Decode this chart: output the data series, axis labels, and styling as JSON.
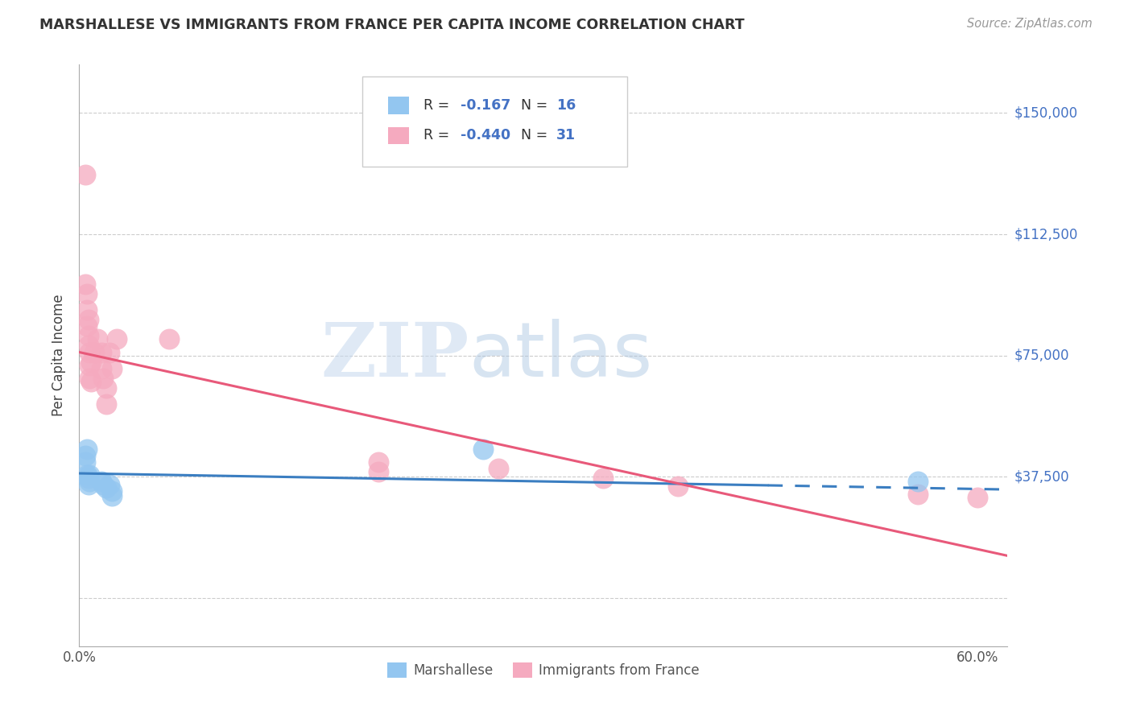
{
  "title": "MARSHALLESE VS IMMIGRANTS FROM FRANCE PER CAPITA INCOME CORRELATION CHART",
  "source": "Source: ZipAtlas.com",
  "ylabel": "Per Capita Income",
  "xlim": [
    0.0,
    0.62
  ],
  "ylim": [
    -15000,
    165000
  ],
  "yticks": [
    0,
    37500,
    75000,
    112500,
    150000
  ],
  "ytick_labels": [
    "",
    "$37,500",
    "$75,000",
    "$112,500",
    "$150,000"
  ],
  "xtick_vals": [
    0.0,
    0.6
  ],
  "xtick_labels": [
    "0.0%",
    "60.0%"
  ],
  "blue_color": "#93C6F0",
  "pink_color": "#F5AABF",
  "blue_line_color": "#3B7EC1",
  "pink_line_color": "#E8597A",
  "right_label_color": "#4472C4",
  "blue_scatter": [
    [
      0.004,
      44000
    ],
    [
      0.005,
      46000
    ],
    [
      0.004,
      42000
    ],
    [
      0.005,
      38000
    ],
    [
      0.006,
      37000
    ],
    [
      0.007,
      38000
    ],
    [
      0.006,
      35000
    ],
    [
      0.007,
      36000
    ],
    [
      0.015,
      36000
    ],
    [
      0.016,
      35000
    ],
    [
      0.018,
      34000
    ],
    [
      0.02,
      35000
    ],
    [
      0.022,
      33000
    ],
    [
      0.022,
      31500
    ],
    [
      0.27,
      46000
    ],
    [
      0.56,
      36000
    ]
  ],
  "pink_scatter": [
    [
      0.004,
      131000
    ],
    [
      0.004,
      97000
    ],
    [
      0.005,
      94000
    ],
    [
      0.005,
      89000
    ],
    [
      0.005,
      84000
    ],
    [
      0.006,
      86000
    ],
    [
      0.006,
      81000
    ],
    [
      0.006,
      78000
    ],
    [
      0.007,
      76000
    ],
    [
      0.007,
      72000
    ],
    [
      0.007,
      68000
    ],
    [
      0.008,
      73000
    ],
    [
      0.008,
      67000
    ],
    [
      0.01,
      76000
    ],
    [
      0.012,
      80000
    ],
    [
      0.015,
      76000
    ],
    [
      0.015,
      71000
    ],
    [
      0.016,
      68000
    ],
    [
      0.018,
      65000
    ],
    [
      0.018,
      60000
    ],
    [
      0.02,
      76000
    ],
    [
      0.022,
      71000
    ],
    [
      0.025,
      80000
    ],
    [
      0.06,
      80000
    ],
    [
      0.2,
      42000
    ],
    [
      0.2,
      39000
    ],
    [
      0.28,
      40000
    ],
    [
      0.35,
      37000
    ],
    [
      0.4,
      34500
    ],
    [
      0.56,
      32000
    ],
    [
      0.6,
      31000
    ]
  ],
  "blue_line_x": [
    0.0,
    0.62
  ],
  "blue_line_y": [
    38500,
    33500
  ],
  "pink_line_x": [
    0.0,
    0.62
  ],
  "pink_line_y": [
    76000,
    13000
  ],
  "watermark_zip": "ZIP",
  "watermark_atlas": "atlas",
  "background_color": "#FFFFFF",
  "grid_color": "#CCCCCC",
  "legend_r1": "-0.167",
  "legend_n1": "16",
  "legend_r2": "-0.440",
  "legend_n2": "31"
}
